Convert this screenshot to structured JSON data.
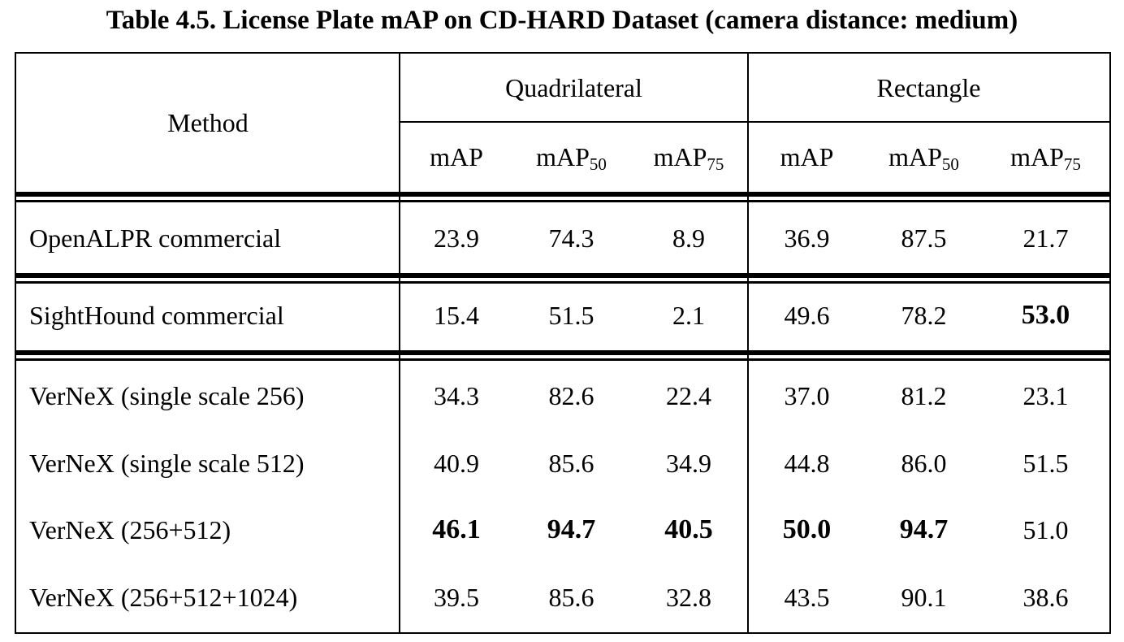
{
  "caption": "Table 4.5. License Plate mAP on CD-HARD Dataset (camera distance: medium)",
  "header": {
    "method": "Method",
    "groups": [
      "Quadrilateral",
      "Rectangle"
    ],
    "metric_base": "mAP",
    "metric_subs": [
      "",
      "50",
      "75",
      "",
      "50",
      "75"
    ]
  },
  "rows": [
    {
      "method": "OpenALPR commercial",
      "values": [
        "23.9",
        "74.3",
        "8.9",
        "36.9",
        "87.5",
        "21.7"
      ],
      "bold": []
    },
    {
      "method": "SightHound commercial",
      "values": [
        "15.4",
        "51.5",
        "2.1",
        "49.6",
        "78.2",
        "53.0"
      ],
      "bold": [
        5
      ]
    },
    {
      "method": "VerNeX (single scale 256)",
      "values": [
        "34.3",
        "82.6",
        "22.4",
        "37.0",
        "81.2",
        "23.1"
      ],
      "bold": []
    },
    {
      "method": "VerNeX (single scale 512)",
      "values": [
        "40.9",
        "85.6",
        "34.9",
        "44.8",
        "86.0",
        "51.5"
      ],
      "bold": []
    },
    {
      "method": "VerNeX (256+512)",
      "values": [
        "46.1",
        "94.7",
        "40.5",
        "50.0",
        "94.7",
        "51.0"
      ],
      "bold": [
        0,
        1,
        2,
        3,
        4
      ]
    },
    {
      "method": "VerNeX (256+512+1024)",
      "values": [
        "39.5",
        "85.6",
        "32.8",
        "43.5",
        "90.1",
        "38.6"
      ],
      "bold": []
    }
  ]
}
